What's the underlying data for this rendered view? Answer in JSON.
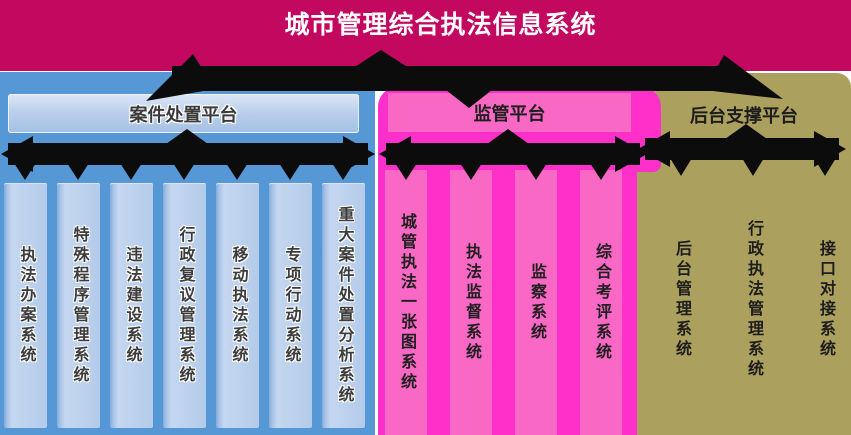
{
  "title": "城市管理综合执法信息系统",
  "platforms": [
    {
      "name": "案件处置平台",
      "systems": [
        "执法办案系统",
        "特殊程序管理系统",
        "违法建设系统",
        "行政复议管理系统",
        "移动执法系统",
        "专项行动系统",
        "重大案件处置分析系统"
      ]
    },
    {
      "name": "监管平台",
      "systems": [
        "城管执法一张图系统",
        "执法监督系统",
        "监察系统",
        "综合考评系统"
      ]
    },
    {
      "name": "后台支撑平台",
      "systems": [
        "后台管理系统",
        "行政执法管理系统",
        "接口对接系统"
      ]
    }
  ],
  "colors": {
    "banner": "#C3085F",
    "title_text": "#FFFFFF",
    "case_platform": "#5697D6",
    "case_column": "#BBD0EB",
    "supervision_platform": "#FF2FC9",
    "supervision_column": "#F968C4",
    "support_platform": "#ACA05E",
    "connector": "#0C0C0C",
    "label_text": "#3C3C3C"
  }
}
